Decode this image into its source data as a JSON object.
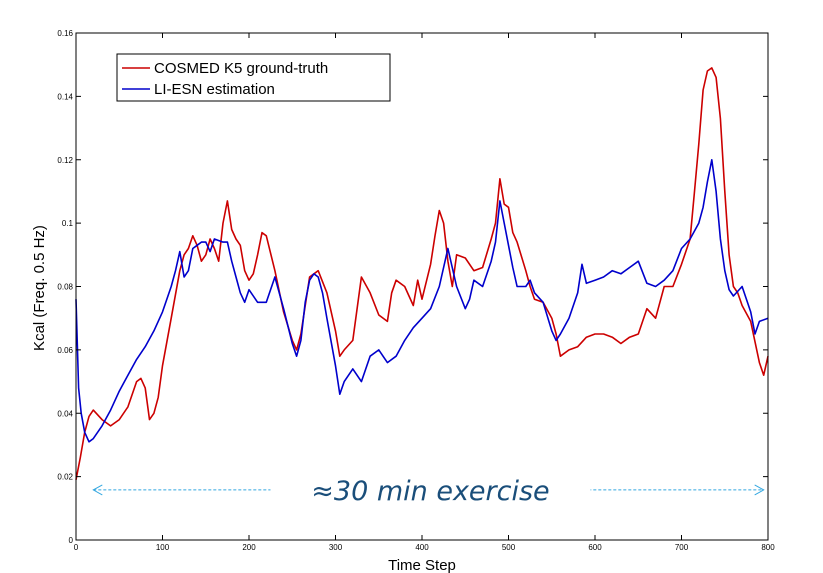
{
  "chart_data": {
    "type": "line",
    "xlabel": "Time Step",
    "ylabel": "Kcal (Freq. 0.5 Hz)",
    "xlim": [
      0,
      800
    ],
    "ylim": [
      0,
      0.16
    ],
    "xticks": [
      0,
      100,
      200,
      300,
      400,
      500,
      600,
      700,
      800
    ],
    "yticks": [
      0,
      0.02,
      0.04,
      0.06,
      0.08,
      0.1,
      0.12,
      0.14,
      0.16
    ],
    "xtick_labels": [
      "0",
      "100",
      "200",
      "300",
      "400",
      "500",
      "600",
      "700",
      "800"
    ],
    "ytick_labels": [
      "0",
      "0.02",
      "0.04",
      "0.06",
      "0.08",
      "0.1",
      "0.12",
      "0.14",
      "0.16"
    ],
    "grid": false,
    "legend_position": "top-left",
    "annotation": {
      "text": "≈30 min exercise",
      "x_start": 20,
      "x_end": 795,
      "y": 0.0158,
      "color": "#1a4e7a",
      "arrow_color": "#33a7e0"
    },
    "series": [
      {
        "name": "COSMED K5 ground-truth",
        "color": "#cc0000",
        "x": [
          0,
          5,
          10,
          15,
          20,
          30,
          40,
          50,
          60,
          70,
          75,
          80,
          85,
          90,
          95,
          100,
          110,
          120,
          125,
          130,
          135,
          140,
          145,
          150,
          155,
          160,
          165,
          170,
          175,
          180,
          185,
          190,
          195,
          200,
          205,
          210,
          215,
          220,
          230,
          240,
          250,
          255,
          260,
          270,
          280,
          290,
          300,
          305,
          310,
          320,
          330,
          340,
          350,
          360,
          365,
          370,
          380,
          390,
          395,
          400,
          410,
          415,
          420,
          425,
          430,
          435,
          440,
          450,
          460,
          470,
          480,
          485,
          490,
          495,
          500,
          505,
          510,
          520,
          525,
          530,
          540,
          550,
          555,
          560,
          570,
          580,
          590,
          600,
          610,
          620,
          630,
          640,
          650,
          660,
          670,
          680,
          690,
          700,
          710,
          715,
          720,
          725,
          730,
          735,
          740,
          745,
          750,
          755,
          760,
          765,
          770,
          780,
          790,
          795,
          800
        ],
        "y": [
          0.019,
          0.026,
          0.034,
          0.039,
          0.041,
          0.038,
          0.036,
          0.038,
          0.042,
          0.05,
          0.051,
          0.048,
          0.038,
          0.04,
          0.045,
          0.055,
          0.07,
          0.085,
          0.09,
          0.092,
          0.096,
          0.093,
          0.088,
          0.09,
          0.095,
          0.092,
          0.088,
          0.1,
          0.107,
          0.098,
          0.095,
          0.093,
          0.085,
          0.082,
          0.084,
          0.09,
          0.097,
          0.096,
          0.085,
          0.072,
          0.063,
          0.06,
          0.065,
          0.083,
          0.085,
          0.078,
          0.066,
          0.058,
          0.06,
          0.063,
          0.083,
          0.078,
          0.071,
          0.069,
          0.078,
          0.082,
          0.08,
          0.074,
          0.082,
          0.076,
          0.087,
          0.096,
          0.104,
          0.1,
          0.088,
          0.08,
          0.09,
          0.089,
          0.085,
          0.086,
          0.095,
          0.1,
          0.114,
          0.106,
          0.105,
          0.097,
          0.094,
          0.085,
          0.08,
          0.076,
          0.075,
          0.07,
          0.065,
          0.058,
          0.06,
          0.061,
          0.064,
          0.065,
          0.065,
          0.064,
          0.062,
          0.064,
          0.065,
          0.073,
          0.07,
          0.08,
          0.08,
          0.087,
          0.095,
          0.11,
          0.125,
          0.142,
          0.148,
          0.149,
          0.146,
          0.133,
          0.11,
          0.09,
          0.08,
          0.078,
          0.074,
          0.069,
          0.056,
          0.052,
          0.058
        ]
      },
      {
        "name": "LI-ESN estimation",
        "color": "#0000cc",
        "x": [
          0,
          3,
          6,
          10,
          15,
          20,
          30,
          40,
          50,
          60,
          70,
          80,
          90,
          100,
          110,
          115,
          120,
          125,
          130,
          135,
          140,
          145,
          150,
          155,
          160,
          170,
          175,
          180,
          185,
          190,
          195,
          200,
          210,
          220,
          230,
          240,
          250,
          255,
          260,
          265,
          270,
          275,
          280,
          285,
          290,
          300,
          305,
          310,
          320,
          330,
          340,
          350,
          360,
          370,
          380,
          390,
          400,
          410,
          420,
          430,
          440,
          450,
          455,
          460,
          470,
          480,
          485,
          490,
          495,
          500,
          505,
          510,
          520,
          525,
          530,
          540,
          550,
          555,
          560,
          570,
          580,
          585,
          590,
          600,
          610,
          620,
          630,
          640,
          650,
          660,
          670,
          680,
          690,
          700,
          710,
          720,
          725,
          730,
          735,
          740,
          745,
          750,
          755,
          760,
          770,
          780,
          785,
          790,
          800
        ],
        "y": [
          0.076,
          0.048,
          0.04,
          0.034,
          0.031,
          0.032,
          0.036,
          0.041,
          0.047,
          0.052,
          0.057,
          0.061,
          0.066,
          0.072,
          0.08,
          0.085,
          0.091,
          0.083,
          0.085,
          0.092,
          0.093,
          0.094,
          0.094,
          0.091,
          0.095,
          0.094,
          0.094,
          0.088,
          0.083,
          0.078,
          0.075,
          0.079,
          0.075,
          0.075,
          0.083,
          0.073,
          0.062,
          0.058,
          0.063,
          0.075,
          0.082,
          0.084,
          0.083,
          0.078,
          0.07,
          0.055,
          0.046,
          0.05,
          0.054,
          0.05,
          0.058,
          0.06,
          0.056,
          0.058,
          0.063,
          0.067,
          0.07,
          0.073,
          0.08,
          0.092,
          0.08,
          0.073,
          0.076,
          0.082,
          0.08,
          0.088,
          0.094,
          0.107,
          0.1,
          0.093,
          0.086,
          0.08,
          0.08,
          0.082,
          0.078,
          0.075,
          0.066,
          0.063,
          0.065,
          0.07,
          0.078,
          0.087,
          0.081,
          0.082,
          0.083,
          0.085,
          0.084,
          0.086,
          0.088,
          0.081,
          0.08,
          0.082,
          0.085,
          0.092,
          0.095,
          0.1,
          0.105,
          0.113,
          0.12,
          0.11,
          0.095,
          0.085,
          0.079,
          0.077,
          0.08,
          0.072,
          0.065,
          0.069,
          0.07
        ]
      }
    ]
  }
}
